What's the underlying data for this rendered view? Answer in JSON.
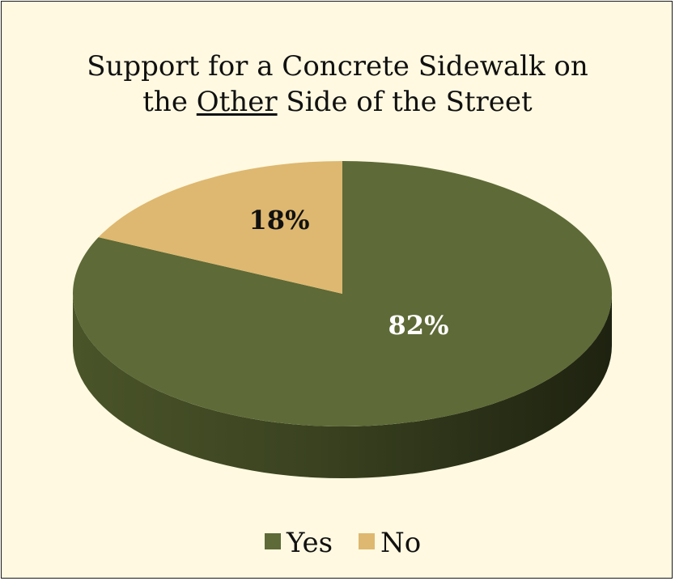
{
  "chart_data": {
    "type": "pie",
    "title_parts": [
      {
        "line": 1,
        "text": "Support for a Concrete Sidewalk on",
        "underline": false
      },
      {
        "line": 2,
        "text": "the ",
        "underline": false
      },
      {
        "line": 2,
        "text": "Other",
        "underline": true
      },
      {
        "line": 2,
        "text": " Side of the Street",
        "underline": false
      }
    ],
    "categories": [
      "Yes",
      "No"
    ],
    "values": [
      82,
      18
    ],
    "data_labels": [
      "82%",
      "18%"
    ],
    "colors": [
      "#5E6A37",
      "#DEB870"
    ],
    "label_colors": [
      "#ffffff",
      "#111111"
    ],
    "legend_placement": "bottom",
    "style": "3d"
  }
}
